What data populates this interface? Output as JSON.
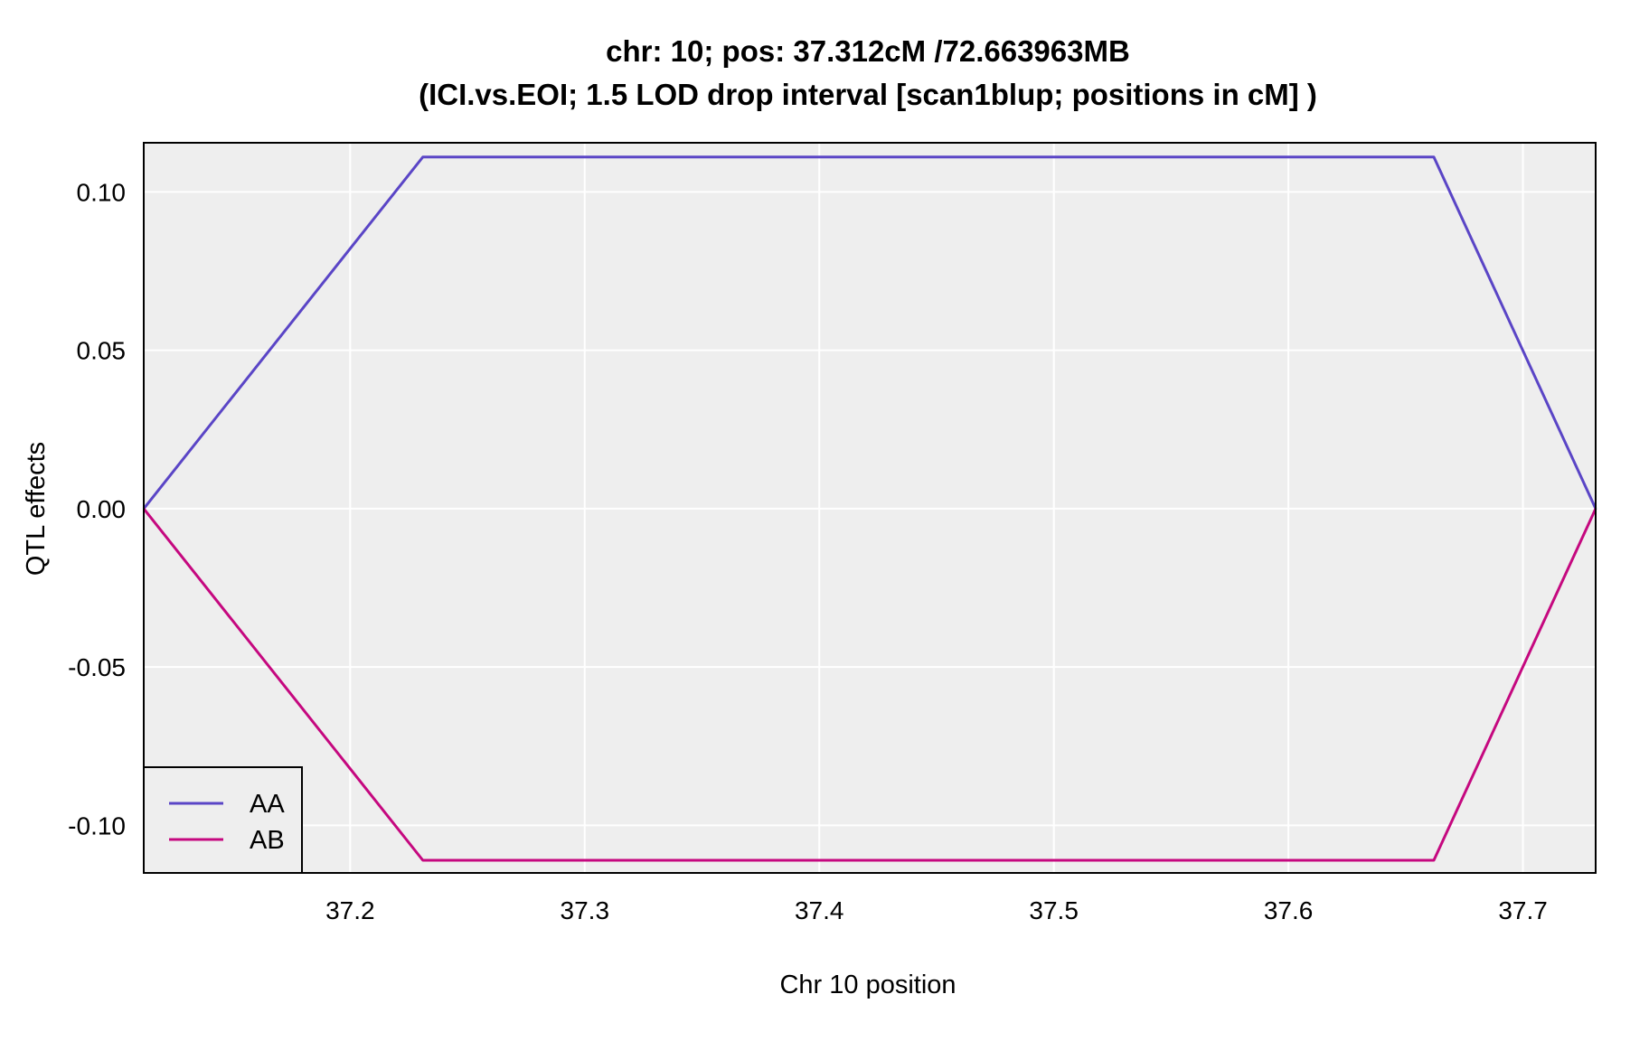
{
  "chart_data": {
    "type": "line",
    "title_line1": "chr: 10; pos: 37.312cM /72.663963MB",
    "title_line2": "(ICI.vs.EOI; 1.5 LOD drop interval [scan1blup; positions in cM] )",
    "xlabel": "Chr 10 position",
    "ylabel": "QTL effects",
    "xlim": [
      37.112,
      37.731
    ],
    "ylim": [
      -0.115,
      0.1155
    ],
    "xticks": [
      37.2,
      37.3,
      37.4,
      37.5,
      37.6,
      37.7
    ],
    "xtick_labels": [
      "37.2",
      "37.3",
      "37.4",
      "37.5",
      "37.6",
      "37.7"
    ],
    "yticks": [
      0.1,
      0.05,
      0.0,
      -0.05,
      -0.1
    ],
    "ytick_labels": [
      "0.10",
      "0.05",
      "0.00",
      "-0.05",
      "-0.10"
    ],
    "grid": true,
    "panel_background": "#EEEEEE",
    "grid_color": "#FFFFFF",
    "legend_position": "bottom-left",
    "series": [
      {
        "name": "AA",
        "color": "#5A45C6",
        "x": [
          37.112,
          37.231,
          37.662,
          37.731
        ],
        "y": [
          0.0,
          0.111,
          0.111,
          0.0
        ]
      },
      {
        "name": "AB",
        "color": "#C5087F",
        "x": [
          37.112,
          37.231,
          37.662,
          37.731
        ],
        "y": [
          0.0,
          -0.111,
          -0.111,
          0.0
        ]
      }
    ]
  }
}
